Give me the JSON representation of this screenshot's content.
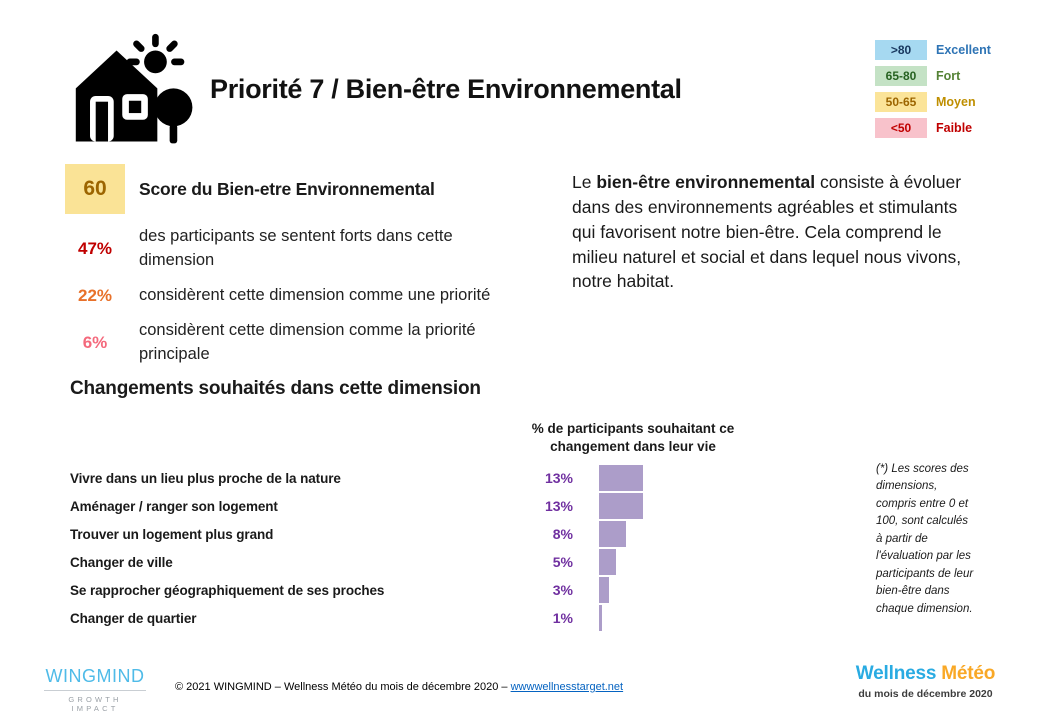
{
  "header": {
    "title": "Priorité 7 / Bien-être Environnemental",
    "icon": "house-sun-tree-icon"
  },
  "legend": {
    "items": [
      {
        "range": ">80",
        "label": "Excellent",
        "bg": "#A6D9F1",
        "range_color": "#17375E",
        "label_color": "#2E74B5"
      },
      {
        "range": "65-80",
        "label": "Fort",
        "bg": "#C4E2C5",
        "range_color": "#276221",
        "label_color": "#548235"
      },
      {
        "range": "50-65",
        "label": "Moyen",
        "bg": "#FBE499",
        "range_color": "#9C6500",
        "label_color": "#BF8F00"
      },
      {
        "range": "<50",
        "label": "Faible",
        "bg": "#F8C2CB",
        "range_color": "#C00000",
        "label_color": "#C00000"
      }
    ]
  },
  "score_panel": {
    "score": "60",
    "score_bg": "#FAE396",
    "score_color": "#9C6500",
    "title": "Score du Bien-etre Environnemental",
    "stats": [
      {
        "value": "47%",
        "color": "#C00000",
        "text": "des participants se sentent forts dans cette dimension"
      },
      {
        "value": "22%",
        "color": "#E8712A",
        "text": "considèrent cette dimension comme une priorité"
      },
      {
        "value": "6%",
        "color": "#F4697C",
        "text": "considèrent cette dimension comme la priorité principale"
      }
    ]
  },
  "description": {
    "prefix": "Le ",
    "bold": "bien-être environnemental",
    "rest": " consiste à évoluer dans des environnements agréables et stimulants qui favorisent notre bien-être. Cela comprend le milieu naturel et social et dans lequel nous vivons, notre habitat."
  },
  "changes": {
    "heading": "Changements souhaités dans cette dimension"
  },
  "chart_data": {
    "type": "bar",
    "orientation": "horizontal",
    "title": "% de participants souhaitant ce changement dans leur vie",
    "categories": [
      "Vivre dans un lieu plus proche de la nature",
      "Aménager / ranger son logement",
      "Trouver un logement plus grand",
      "Changer de ville",
      "Se rapprocher géographiquement de ses proches",
      "Changer de quartier"
    ],
    "values": [
      13,
      13,
      8,
      5,
      3,
      1
    ],
    "value_labels": [
      "13%",
      "13%",
      "8%",
      "5%",
      "3%",
      "1%"
    ],
    "xlim": [
      0,
      15
    ],
    "grid": false,
    "legend_position": "none",
    "bar_color": "#AC9DC9",
    "value_label_color": "#7030A0"
  },
  "footnote": "(*) Les scores des dimensions, compris entre 0 et 100, sont calculés à partir de l'évaluation par les participants de leur bien-être dans chaque dimension.",
  "footer": {
    "logo_name": "WINGMIND",
    "logo_tagline": "GROWTH IMPACT",
    "logo_color": "#4FBBE8",
    "copyright_text": "© 2021 WINGMIND – Wellness Météo du mois de décembre 2020 – ",
    "link_text": "wwwwellnesstarget.net",
    "brand_part1": "Wellness",
    "brand_part2": " Météo",
    "brand_part1_color": "#29ABE2",
    "brand_part2_color": "#F9A826",
    "brand_subtitle": "du mois de décembre 2020"
  }
}
